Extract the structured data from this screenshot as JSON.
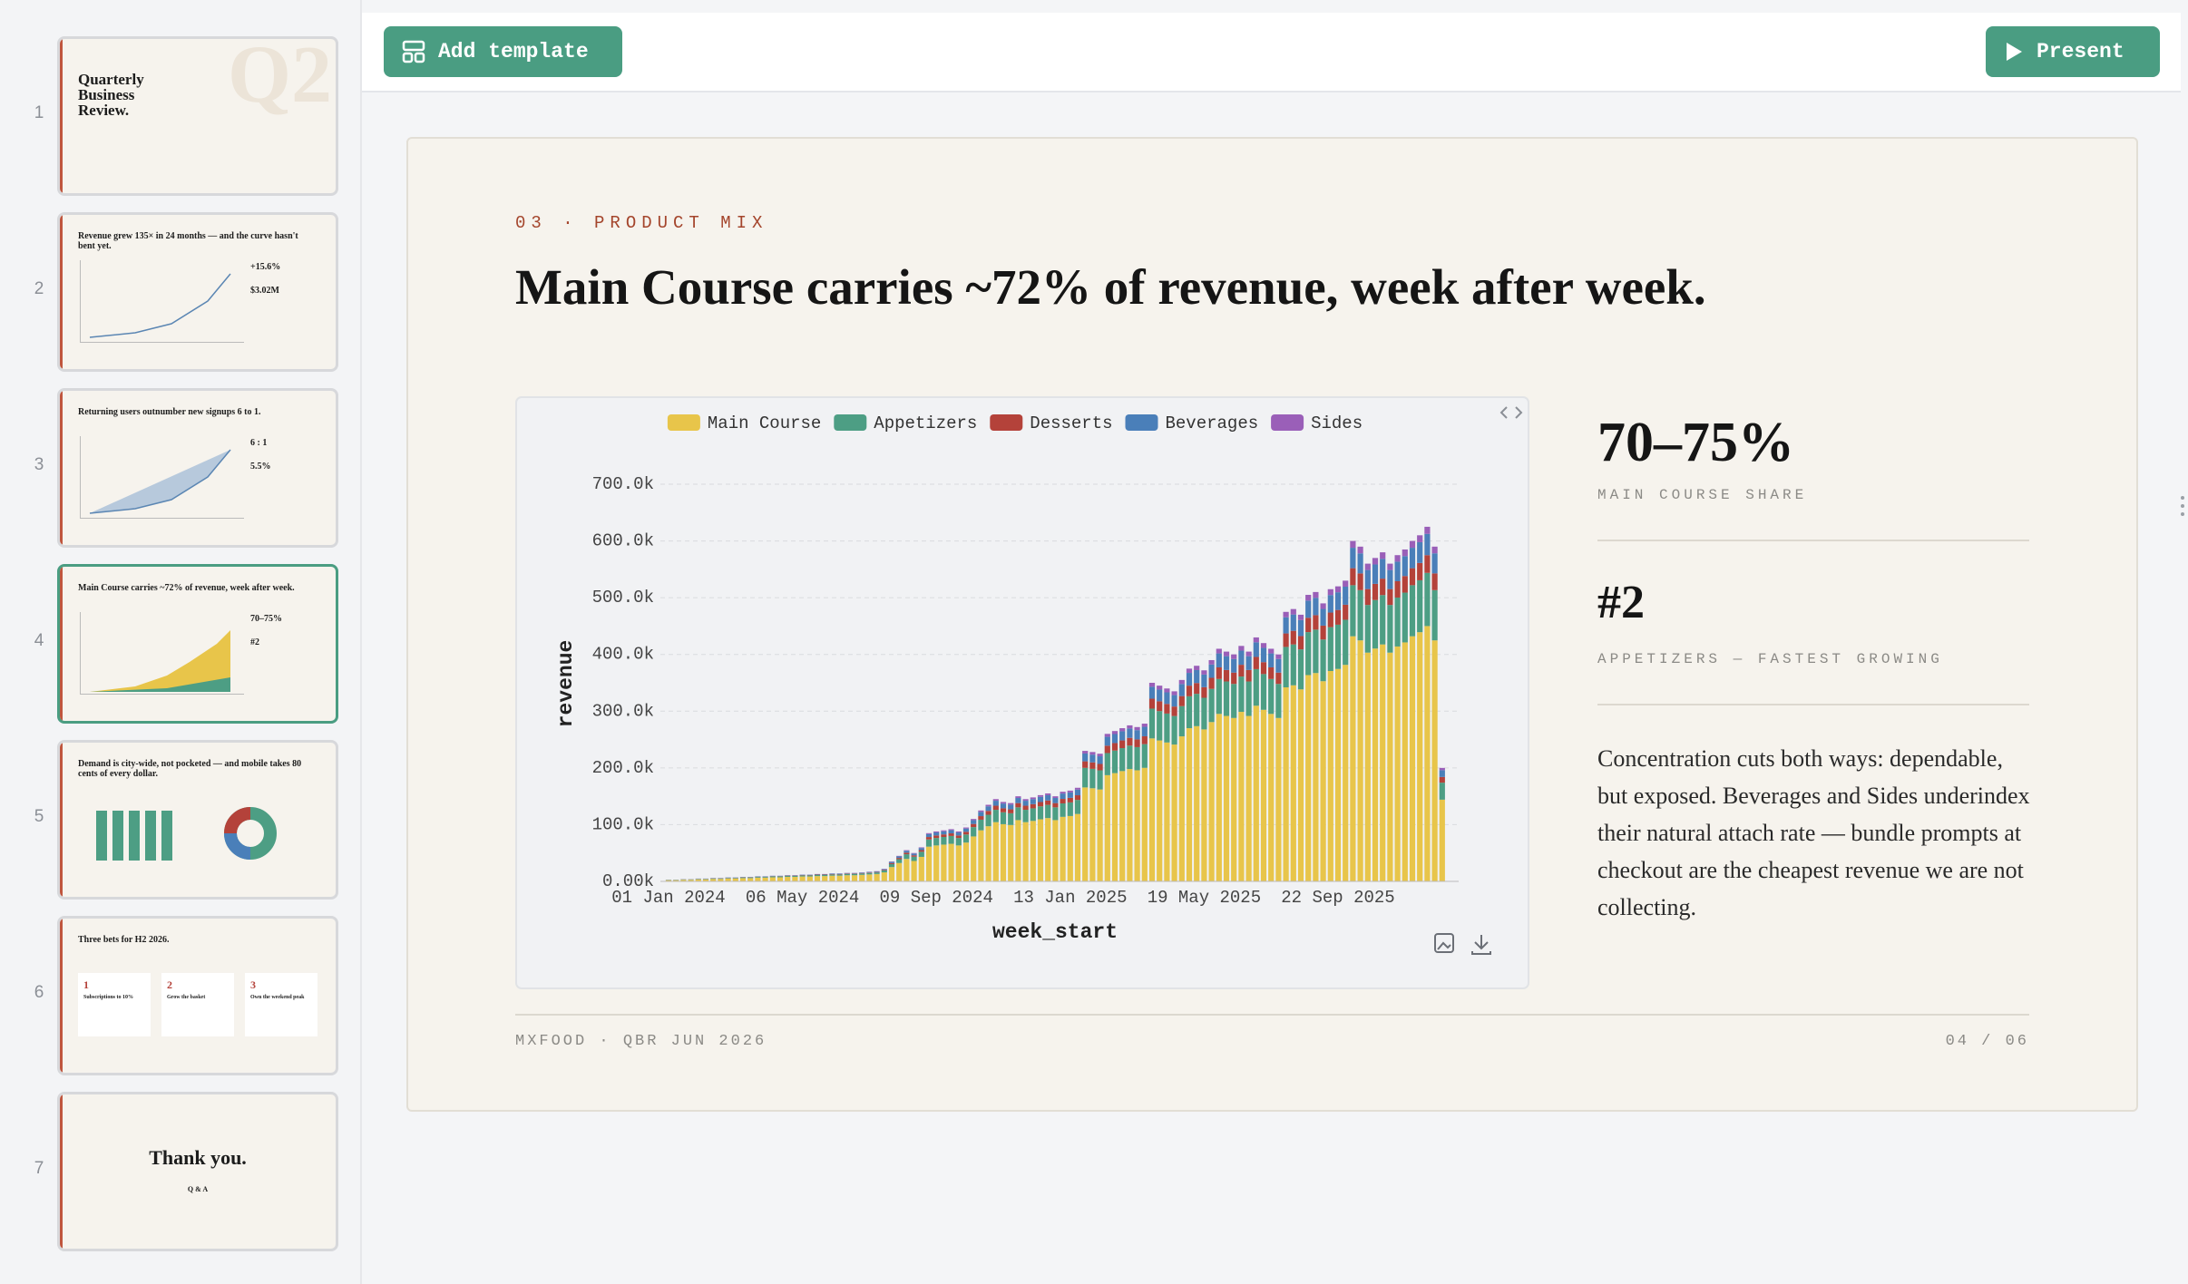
{
  "toolbar": {
    "add_template": "Add template",
    "present": "Present"
  },
  "sidebar": {
    "slides": [
      {
        "number": 1,
        "title": "Quarterly Business Review.",
        "watermark": "Q2"
      },
      {
        "number": 2,
        "title": "Revenue grew 135× in 24 months — and the curve hasn't bent yet.",
        "stat_a": "+15.6%",
        "stat_b": "$3.02M"
      },
      {
        "number": 3,
        "title": "Returning users outnumber new signups 6 to 1.",
        "stat_a": "6 : 1",
        "stat_b": "5.5%"
      },
      {
        "number": 4,
        "title": "Main Course carries ~72% of revenue, week after week.",
        "stat_a": "70–75%",
        "stat_b": "#2"
      },
      {
        "number": 5,
        "title": "Demand is city-wide, not pocketed — and mobile takes 80 cents of every dollar."
      },
      {
        "number": 6,
        "title": "Three bets for H2 2026.",
        "cards": [
          [
            "1",
            "Subscriptions to 10%"
          ],
          [
            "2",
            "Grow the basket"
          ],
          [
            "3",
            "Own the weekend peak"
          ]
        ]
      },
      {
        "number": 7,
        "title": "Thank you.",
        "subtitle": "Q & A"
      }
    ]
  },
  "slide": {
    "kicker": "03 · PRODUCT MIX",
    "title": "Main Course carries ~72% of revenue, week after week.",
    "stats": [
      {
        "value": "70–75%",
        "label": "MAIN COURSE SHARE"
      },
      {
        "value": "#2",
        "label": "APPETIZERS — FASTEST GROWING"
      }
    ],
    "paragraph": "Concentration cuts both ways: dependable, but exposed. Beverages and Sides underindex their natural attach rate — bundle prompts at checkout are the cheapest revenue we are not collecting.",
    "footer_left": "MXFOOD · QBR JUN 2026",
    "footer_right": "04 / 06"
  },
  "chart_data": {
    "type": "stacked_bar",
    "x_label": "week_start",
    "y_label": "revenue",
    "categories": [
      "01 Jan 2024",
      null,
      null,
      null,
      null,
      null,
      null,
      null,
      null,
      null,
      null,
      null,
      null,
      null,
      null,
      null,
      null,
      null,
      "06 May 2024",
      null,
      null,
      null,
      null,
      null,
      null,
      null,
      null,
      null,
      null,
      null,
      null,
      null,
      null,
      null,
      null,
      null,
      "09 Sep 2024",
      null,
      null,
      null,
      null,
      null,
      null,
      null,
      null,
      null,
      null,
      null,
      null,
      null,
      null,
      null,
      null,
      null,
      "13 Jan 2025",
      null,
      null,
      null,
      null,
      null,
      null,
      null,
      null,
      null,
      null,
      null,
      null,
      null,
      null,
      null,
      null,
      null,
      "19 May 2025",
      null,
      null,
      null,
      null,
      null,
      null,
      null,
      null,
      null,
      null,
      null,
      null,
      null,
      null,
      null,
      null,
      null,
      "22 Sep 2025",
      null,
      null,
      null,
      null,
      null,
      null,
      null,
      null,
      null,
      null,
      null,
      null,
      null,
      null
    ],
    "ylim": [
      0,
      700000
    ],
    "yticks": [
      {
        "value": 0,
        "label": "0.00k"
      },
      {
        "value": 100000,
        "label": "100.0k"
      },
      {
        "value": 200000,
        "label": "200.0k"
      },
      {
        "value": 300000,
        "label": "300.0k"
      },
      {
        "value": 400000,
        "label": "400.0k"
      },
      {
        "value": 500000,
        "label": "500.0k"
      },
      {
        "value": 600000,
        "label": "600.0k"
      },
      {
        "value": 700000,
        "label": "700.0k"
      }
    ],
    "grid": true,
    "series": [
      {
        "name": "Main Course",
        "color": "#e8c54a",
        "values": [
          2160,
          2160,
          2880,
          2880,
          3600,
          3600,
          4320,
          4320,
          5040,
          5040,
          5760,
          5760,
          6480,
          6480,
          7200,
          7200,
          7920,
          7920,
          8640,
          8640,
          9360,
          9360,
          10080,
          10080,
          10800,
          10800,
          11520,
          12240,
          12960,
          15840,
          25200,
          32400,
          39600,
          36000,
          43200,
          61200,
          63360,
          64800,
          66240,
          63360,
          68400,
          79200,
          90000,
          97200,
          104400,
          100800,
          99360,
          108000,
          104400,
          106560,
          109440,
          111600,
          108000,
          113760,
          115200,
          118800,
          165600,
          164160,
          162000,
          187200,
          190800,
          194400,
          198000,
          195840,
          200160,
          252000,
          248400,
          244800,
          241200,
          255600,
          270000,
          273600,
          267840,
          280800,
          295200,
          291600,
          288000,
          298800,
          291600,
          309600,
          302400,
          295200,
          288000,
          342000,
          345600,
          338400,
          363600,
          367200,
          352800,
          370800,
          374400,
          381600,
          432000,
          424800,
          403200,
          410400,
          417600,
          403200,
          414000,
          421200,
          432000,
          439200,
          450000,
          424800,
          144000
        ]
      },
      {
        "name": "Appetizers",
        "color": "#4d9e84",
        "values": [
          450,
          450,
          600,
          600,
          750,
          750,
          900,
          900,
          1050,
          1050,
          1200,
          1200,
          1350,
          1350,
          1500,
          1500,
          1650,
          1650,
          1800,
          1800,
          1950,
          1950,
          2100,
          2100,
          2250,
          2250,
          2400,
          2550,
          2700,
          3300,
          5250,
          6750,
          8250,
          7500,
          9000,
          12750,
          13200,
          13500,
          13800,
          13200,
          14250,
          16500,
          18750,
          20250,
          21750,
          21000,
          20700,
          22500,
          21750,
          22200,
          22800,
          23250,
          22500,
          23700,
          24000,
          24750,
          34500,
          34200,
          33750,
          39000,
          39750,
          40500,
          41250,
          40800,
          41700,
          52500,
          51750,
          51000,
          50250,
          53250,
          56250,
          57000,
          55800,
          58500,
          61500,
          60750,
          60000,
          62250,
          60750,
          64500,
          63000,
          61500,
          60000,
          71250,
          72000,
          70500,
          75750,
          76500,
          73500,
          77250,
          78000,
          79500,
          90000,
          88500,
          84000,
          85500,
          87000,
          84000,
          86250,
          87750,
          90000,
          91500,
          93750,
          88500,
          30000
        ]
      },
      {
        "name": "Desserts",
        "color": "#b4423a",
        "values": [
          150,
          150,
          200,
          200,
          250,
          250,
          300,
          300,
          350,
          350,
          400,
          400,
          450,
          450,
          500,
          500,
          550,
          550,
          600,
          600,
          650,
          650,
          700,
          700,
          750,
          750,
          800,
          850,
          900,
          1100,
          1750,
          2250,
          2750,
          2500,
          3000,
          4250,
          4400,
          4500,
          4600,
          4400,
          4750,
          5500,
          6250,
          6750,
          7250,
          7000,
          6900,
          7500,
          7250,
          7400,
          7600,
          7750,
          7500,
          7900,
          8000,
          8250,
          11500,
          11400,
          11250,
          13000,
          13250,
          13500,
          13750,
          13600,
          13900,
          17500,
          17250,
          17000,
          16750,
          17750,
          18750,
          19000,
          18600,
          19500,
          20500,
          20250,
          20000,
          20750,
          20250,
          21500,
          21000,
          20500,
          20000,
          23750,
          24000,
          23500,
          25250,
          25500,
          24500,
          25750,
          26000,
          26500,
          30000,
          29500,
          28000,
          28500,
          29000,
          28000,
          28750,
          29250,
          30000,
          30500,
          31250,
          29500,
          10000
        ]
      },
      {
        "name": "Beverages",
        "color": "#4a7fb9",
        "values": [
          180,
          180,
          240,
          240,
          300,
          300,
          360,
          360,
          420,
          420,
          480,
          480,
          540,
          540,
          600,
          600,
          660,
          660,
          720,
          720,
          780,
          780,
          840,
          840,
          900,
          900,
          960,
          1020,
          1080,
          1320,
          2100,
          2700,
          3300,
          3000,
          3600,
          5100,
          5280,
          5400,
          5520,
          5280,
          5700,
          6600,
          7500,
          8100,
          8700,
          8400,
          8280,
          9000,
          8700,
          8880,
          9120,
          9300,
          9000,
          9480,
          9600,
          9900,
          13800,
          13680,
          13500,
          15600,
          15900,
          16200,
          16500,
          16320,
          16680,
          21000,
          20700,
          20400,
          20100,
          21300,
          22500,
          22800,
          22320,
          23400,
          24600,
          24300,
          24000,
          24900,
          24300,
          25800,
          25200,
          24600,
          24000,
          28500,
          28800,
          28200,
          30300,
          30600,
          29400,
          30900,
          31200,
          31800,
          36000,
          35400,
          33600,
          34200,
          34800,
          33600,
          34500,
          35100,
          36000,
          36600,
          37500,
          35400,
          12000
        ]
      },
      {
        "name": "Sides",
        "color": "#9a5fb8",
        "values": [
          60,
          60,
          80,
          80,
          100,
          100,
          120,
          120,
          140,
          140,
          160,
          160,
          180,
          180,
          200,
          200,
          220,
          220,
          240,
          240,
          260,
          260,
          280,
          280,
          300,
          300,
          320,
          340,
          360,
          440,
          700,
          900,
          1100,
          1000,
          1200,
          1700,
          1760,
          1800,
          1840,
          1760,
          1900,
          2200,
          2500,
          2700,
          2900,
          2800,
          2760,
          3000,
          2900,
          2960,
          3040,
          3100,
          3000,
          3160,
          3200,
          3300,
          4600,
          4560,
          4500,
          5200,
          5300,
          5400,
          5500,
          5440,
          5560,
          7000,
          6900,
          6800,
          6700,
          7100,
          7500,
          7600,
          7440,
          7800,
          8200,
          8100,
          8000,
          8300,
          8100,
          8600,
          8400,
          8200,
          8000,
          9500,
          9600,
          9400,
          10100,
          10200,
          9800,
          10300,
          10400,
          10600,
          12000,
          11800,
          11200,
          11400,
          11600,
          11200,
          11500,
          11700,
          12000,
          12200,
          12500,
          11800,
          4000
        ]
      }
    ]
  }
}
